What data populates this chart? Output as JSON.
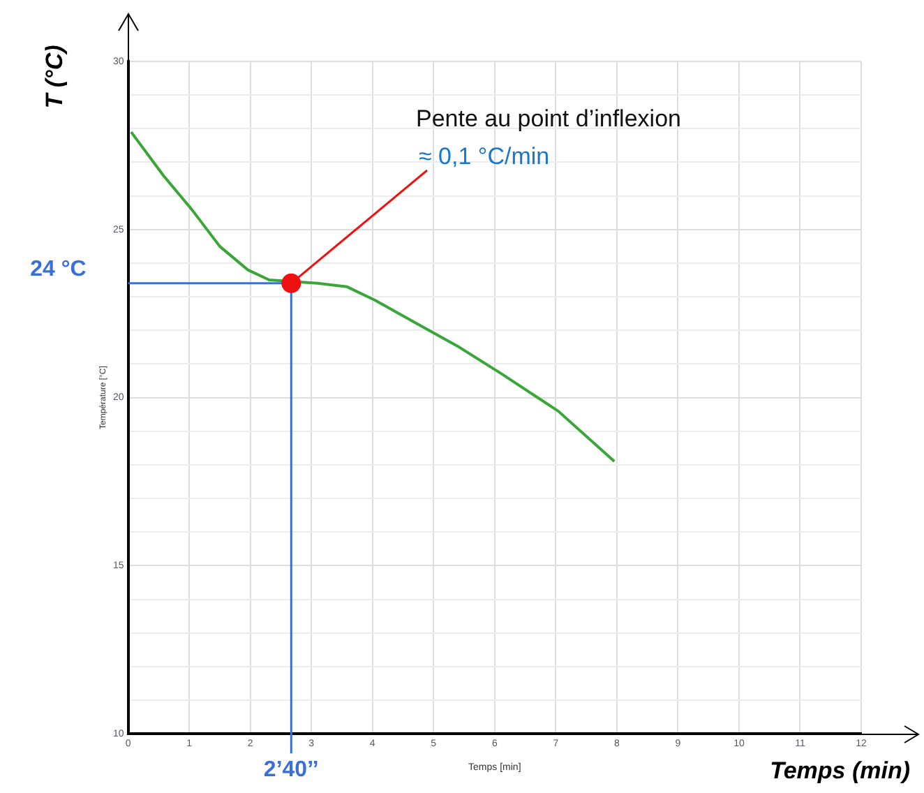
{
  "chart_data": {
    "type": "line",
    "xlabel": "Temps (min)",
    "ylabel": "T (°C)",
    "xlim": [
      0,
      12
    ],
    "xticks": [
      0,
      1,
      2,
      3,
      4,
      5,
      6,
      7,
      8,
      9,
      10,
      11,
      12
    ],
    "ylim": [
      10,
      30
    ],
    "yticks": [
      10,
      {
        "value": 11,
        "label": null
      },
      {
        "value": 12,
        "label": null
      },
      {
        "value": 13,
        "label": null
      },
      {
        "value": 14,
        "label": null
      },
      15,
      {
        "value": 16,
        "label": null
      },
      {
        "value": 17,
        "label": null
      },
      {
        "value": 18,
        "label": null
      },
      {
        "value": 19,
        "label": null
      },
      20,
      {
        "value": 21,
        "label": null
      },
      {
        "value": 22,
        "label": null
      },
      {
        "value": 23,
        "label": null
      },
      {
        "value": 24,
        "label": null
      },
      25,
      {
        "value": 26,
        "label": null
      },
      {
        "value": 27,
        "label": null
      },
      {
        "value": 28,
        "label": null
      },
      {
        "value": 29,
        "label": null
      },
      30
    ],
    "grid": true,
    "legend": false,
    "marker": "none",
    "line_style": "solid",
    "series": [
      {
        "color": "#3aa63a",
        "x": [
          0.05,
          0.58,
          1.04,
          1.5,
          1.96,
          2.31,
          3.1,
          3.58,
          4.04,
          4.73,
          5.42,
          6.12,
          7.04,
          7.96
        ],
        "values": [
          27.9,
          26.6,
          25.6,
          24.5,
          23.8,
          23.5,
          23.4,
          23.3,
          22.9,
          22.2,
          21.5,
          20.7,
          19.6,
          18.1
        ]
      },
      {
        "type": "scatter",
        "color": "#ee1111",
        "marker": "circle",
        "x": [
          2.67
        ],
        "values": [
          23.4
        ]
      }
    ],
    "ref_lines": [
      {
        "axis": "y",
        "value": 23.4,
        "label": "24 °C",
        "color": "#3a6fd6"
      },
      {
        "axis": "x",
        "value": 2.67,
        "label": "2’40’’",
        "color": "#3a6fd6"
      }
    ],
    "annotations": [
      "Pente au point d’inflexion",
      {
        "text": "≈ 0,1 °C/min",
        "x": 2.67,
        "y": 23.4
      },
      "Température [°C]",
      "Temps [min]"
    ]
  }
}
